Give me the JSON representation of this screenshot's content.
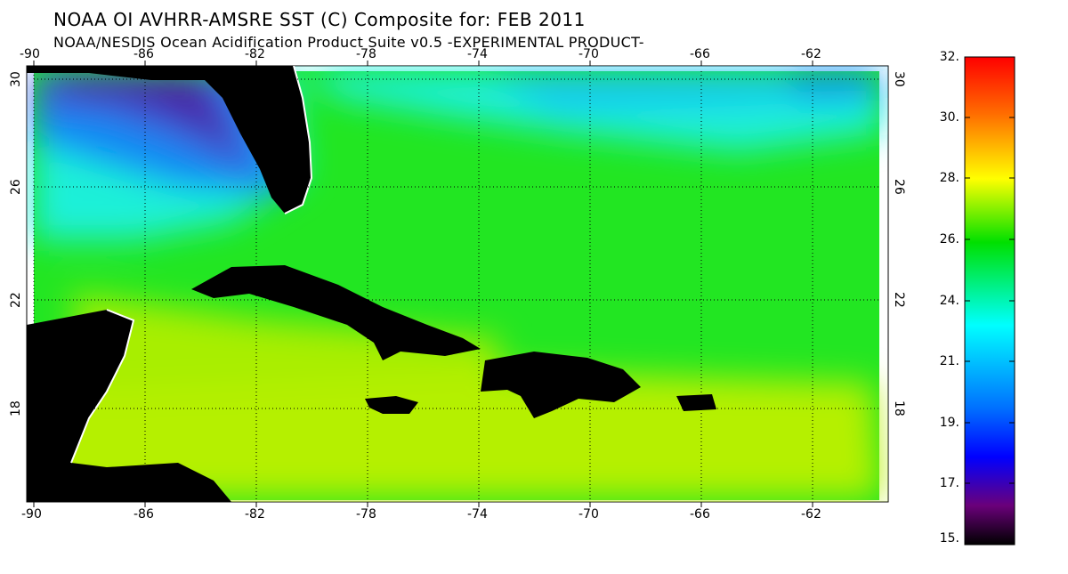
{
  "title": "NOAA OI AVHRR-AMSRE SST (C) Composite for: FEB 2011",
  "subtitle": "NOAA/NESDIS Ocean Acidification Product Suite  v0.5 -EXPERIMENTAL PRODUCT-",
  "map": {
    "lon_ticks": [
      "-90",
      "-86",
      "-82",
      "-78",
      "-74",
      "-70",
      "-66",
      "-62"
    ],
    "lat_ticks": [
      "30",
      "26",
      "22",
      "18"
    ],
    "lon_values": [
      -90,
      -86,
      -82,
      -78,
      -74,
      -70,
      -66,
      -62
    ],
    "lat_values": [
      30,
      26,
      22,
      18
    ],
    "lon_range": [
      -90.3,
      -59.5
    ],
    "lat_range": [
      15.2,
      30.5
    ],
    "grid": "dotted",
    "land_color": "#000000",
    "colors": {
      "warm": "#b5f000",
      "mid": "#22e622",
      "cool": "#1ef0d8",
      "cold": "#0a8cf5",
      "coldest": "#4a1aa0"
    }
  },
  "colorbar": {
    "labels": [
      "32.",
      "30.",
      "28.",
      "26.",
      "24.",
      "21.",
      "19.",
      "17.",
      "15."
    ],
    "min": 15,
    "max": 32,
    "stops": [
      "#ff0000",
      "#ff8000",
      "#ffff00",
      "#00ff00",
      "#00ffff",
      "#0000ff",
      "#6a00a0",
      "#000000"
    ]
  }
}
